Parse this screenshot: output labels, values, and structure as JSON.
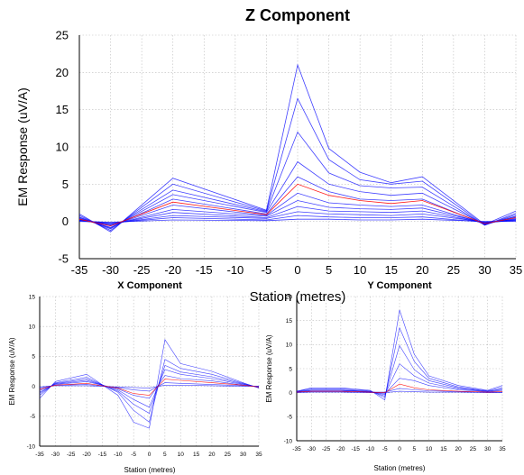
{
  "colors": {
    "series": "#0000ff",
    "highlight": "#ff0000",
    "axis": "#000000",
    "grid": "#bdbdbd"
  },
  "chart_data": [
    {
      "type": "line",
      "title": "Z Component",
      "xlabel": "Station (metres)",
      "ylabel": "EM Response (uV/A)",
      "xlim": [
        -35,
        35
      ],
      "ylim": [
        -5,
        25
      ],
      "xticks": [
        -35,
        -30,
        -25,
        -20,
        -15,
        -10,
        -5,
        0,
        5,
        10,
        15,
        20,
        25,
        30,
        35
      ],
      "yticks": [
        -5,
        0,
        5,
        10,
        15,
        20,
        25
      ],
      "grid": true,
      "x": [
        -35,
        -30,
        -20,
        -5,
        0,
        5,
        10,
        15,
        20,
        30,
        35
      ],
      "series": [
        {
          "values": [
            1.0,
            -1.4,
            5.8,
            1.5,
            21.0,
            9.8,
            6.6,
            5.2,
            6.0,
            -0.4,
            1.4
          ]
        },
        {
          "values": [
            0.8,
            -1.2,
            5.0,
            1.4,
            16.5,
            8.3,
            5.6,
            5.0,
            5.4,
            -0.5,
            1.1
          ]
        },
        {
          "values": [
            0.6,
            -1.0,
            4.2,
            1.3,
            12.0,
            6.5,
            4.8,
            4.5,
            4.6,
            -0.5,
            0.9
          ]
        },
        {
          "values": [
            0.5,
            -0.9,
            3.6,
            1.2,
            8.0,
            5.0,
            4.0,
            3.5,
            3.8,
            -0.4,
            0.7
          ]
        },
        {
          "values": [
            0.4,
            -0.8,
            3.0,
            1.0,
            6.0,
            4.0,
            3.0,
            2.8,
            3.0,
            -0.4,
            0.6
          ]
        },
        {
          "values": [
            0.3,
            -0.6,
            2.6,
            0.9,
            5.0,
            3.5,
            2.8,
            2.4,
            2.8,
            -0.3,
            0.5
          ],
          "highlight": true
        },
        {
          "values": [
            0.3,
            -0.6,
            2.2,
            0.8,
            3.8,
            2.5,
            2.2,
            2.0,
            2.2,
            -0.3,
            0.4
          ]
        },
        {
          "values": [
            0.2,
            -0.5,
            1.6,
            0.7,
            2.8,
            1.9,
            1.7,
            1.6,
            1.8,
            -0.2,
            0.3
          ]
        },
        {
          "values": [
            0.2,
            -0.4,
            1.2,
            0.5,
            2.0,
            1.4,
            1.3,
            1.2,
            1.4,
            -0.2,
            0.2
          ]
        },
        {
          "values": [
            0.1,
            -0.3,
            0.8,
            0.4,
            1.3,
            1.0,
            0.9,
            0.8,
            1.0,
            -0.1,
            0.2
          ]
        },
        {
          "values": [
            0.1,
            -0.2,
            0.5,
            0.2,
            0.8,
            0.6,
            0.5,
            0.5,
            0.6,
            -0.1,
            0.1
          ]
        },
        {
          "values": [
            0.0,
            -0.1,
            0.2,
            0.1,
            0.3,
            0.3,
            0.2,
            0.2,
            0.3,
            0.0,
            0.0
          ]
        }
      ]
    },
    {
      "type": "line",
      "title": "X Component",
      "xlabel": "Station (metres)",
      "ylabel": "EM Response (uV/A)",
      "xlim": [
        -35,
        35
      ],
      "ylim": [
        -10,
        15
      ],
      "xticks": [
        -35,
        -30,
        -25,
        -20,
        -15,
        -10,
        -5,
        0,
        5,
        10,
        15,
        20,
        25,
        30,
        35
      ],
      "yticks": [
        -10,
        -5,
        0,
        5,
        10,
        15
      ],
      "grid": true,
      "x": [
        -35,
        -30,
        -20,
        -10,
        -5,
        0,
        5,
        10,
        20,
        30,
        35
      ],
      "series": [
        {
          "values": [
            -2.0,
            0.8,
            2.0,
            -1.5,
            -6.0,
            -7.0,
            7.8,
            3.8,
            2.5,
            0.6,
            -0.3
          ]
        },
        {
          "values": [
            -1.5,
            0.6,
            1.5,
            -1.0,
            -4.0,
            -6.0,
            4.5,
            3.0,
            2.0,
            0.5,
            -0.2
          ]
        },
        {
          "values": [
            -1.2,
            0.5,
            1.2,
            -0.8,
            -3.0,
            -4.5,
            3.5,
            2.4,
            1.6,
            0.4,
            -0.2
          ]
        },
        {
          "values": [
            -1.0,
            0.4,
            1.0,
            -0.6,
            -2.2,
            -3.5,
            2.8,
            2.0,
            1.3,
            0.3,
            -0.1
          ]
        },
        {
          "values": [
            -0.7,
            0.3,
            0.8,
            -0.4,
            -1.5,
            -2.0,
            1.8,
            1.3,
            0.9,
            0.2,
            -0.1
          ]
        },
        {
          "values": [
            -0.5,
            0.2,
            0.5,
            -0.3,
            -1.2,
            -1.5,
            1.2,
            1.0,
            0.6,
            0.2,
            -0.1
          ],
          "highlight": true
        },
        {
          "values": [
            -0.3,
            0.2,
            0.3,
            -0.2,
            -0.6,
            -0.8,
            0.6,
            0.5,
            0.3,
            0.1,
            0.0
          ]
        },
        {
          "values": [
            -0.1,
            0.1,
            0.1,
            -0.1,
            -0.2,
            -0.3,
            0.2,
            0.2,
            0.1,
            0.0,
            0.0
          ]
        }
      ]
    },
    {
      "type": "line",
      "title": "Y Component",
      "xlabel": "Station (metres)",
      "ylabel": "EM Response (uV/A)",
      "xlim": [
        -35,
        35
      ],
      "ylim": [
        -10,
        20
      ],
      "xticks": [
        -35,
        -30,
        -25,
        -20,
        -15,
        -10,
        -5,
        0,
        5,
        10,
        15,
        20,
        25,
        30,
        35
      ],
      "yticks": [
        -10,
        -5,
        0,
        5,
        10,
        15,
        20
      ],
      "grid": true,
      "x": [
        -35,
        -30,
        -20,
        -10,
        -5,
        0,
        5,
        10,
        20,
        30,
        35
      ],
      "series": [
        {
          "values": [
            0.3,
            1.0,
            1.0,
            0.5,
            -1.5,
            17.2,
            8.0,
            3.5,
            1.5,
            0.5,
            1.5
          ]
        },
        {
          "values": [
            0.3,
            0.8,
            0.8,
            0.4,
            -1.0,
            13.5,
            6.5,
            3.0,
            1.2,
            0.4,
            1.1
          ]
        },
        {
          "values": [
            0.2,
            0.6,
            0.6,
            0.3,
            -0.7,
            9.8,
            4.8,
            2.5,
            1.0,
            0.3,
            0.8
          ]
        },
        {
          "values": [
            0.2,
            0.5,
            0.5,
            0.2,
            -0.4,
            6.0,
            3.5,
            2.0,
            0.8,
            0.3,
            0.6
          ]
        },
        {
          "values": [
            0.1,
            0.4,
            0.4,
            0.2,
            -0.2,
            3.0,
            2.5,
            1.5,
            0.6,
            0.2,
            0.4
          ]
        },
        {
          "values": [
            0.1,
            0.3,
            0.3,
            0.1,
            0.0,
            1.8,
            1.0,
            0.6,
            0.3,
            0.1,
            0.2
          ],
          "highlight": true
        },
        {
          "values": [
            0.1,
            0.2,
            0.2,
            0.1,
            0.1,
            0.9,
            0.6,
            0.4,
            0.2,
            0.1,
            0.1
          ]
        },
        {
          "values": [
            0.0,
            0.1,
            0.1,
            0.0,
            0.0,
            0.3,
            0.2,
            0.1,
            0.1,
            0.0,
            0.0
          ]
        }
      ]
    }
  ]
}
